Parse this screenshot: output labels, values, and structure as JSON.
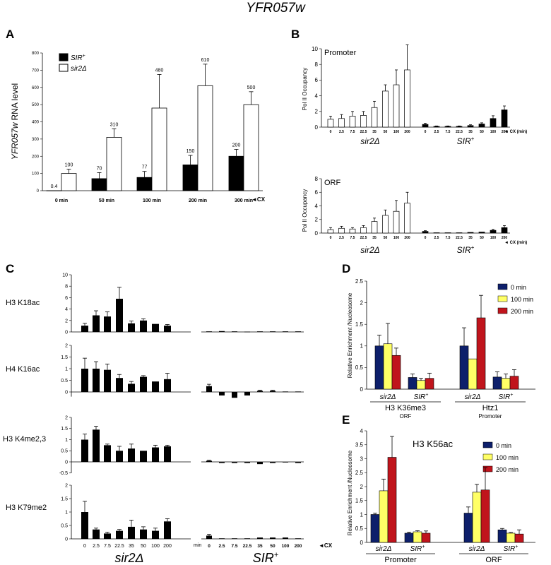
{
  "figure_title": "YFR057w",
  "panels": {
    "A": {
      "letter": "A",
      "ylabel_gene": "YFR057w",
      "ylabel_rest": "RNA level",
      "yticks": [
        "0",
        "100",
        "200",
        "300",
        "400",
        "500",
        "600",
        "700",
        "800"
      ],
      "categories": [
        "0 min",
        "50 min",
        "100 min",
        "200 min",
        "300 min"
      ],
      "cx_marker": "◄CX",
      "legend": [
        {
          "name": "SIR",
          "sup": "+",
          "color": "#000000"
        },
        {
          "name": "sir2Δ",
          "sup": "",
          "color": "#ffffff"
        }
      ],
      "value_labels_sir": [
        "0.4",
        "70",
        "77",
        "150",
        "200"
      ],
      "value_labels_sir2": [
        "100",
        "310",
        "480",
        "610",
        "500"
      ]
    },
    "B": {
      "letter": "B",
      "ylabel": "Pol II Occupancy",
      "subpanels": [
        {
          "label": "Promoter",
          "yticks": [
            "0",
            "2",
            "4",
            "6",
            "8",
            "10"
          ]
        },
        {
          "label": "ORF",
          "yticks": [
            "0",
            "2",
            "4",
            "6",
            "8"
          ]
        }
      ],
      "xticks": [
        "0",
        "2.5",
        "7.5",
        "22.5",
        "35",
        "50",
        "100",
        "200"
      ],
      "cx_marker": "◄ CX (min)",
      "group_sir2": "sir2Δ",
      "group_sir": "SIR",
      "group_sir_sup": "+"
    },
    "C": {
      "letter": "C",
      "rows": [
        {
          "label": "H3 K18ac",
          "yticks": [
            "0",
            "2",
            "4",
            "6",
            "8",
            "10"
          ]
        },
        {
          "label": "H4 K16ac",
          "yticks": [
            "0",
            "0.5",
            "1",
            "1.5",
            "2"
          ]
        },
        {
          "label": "H3 K4me2,3",
          "yticks": [
            "-0.5",
            "0",
            "0.5",
            "1",
            "1.5",
            "2"
          ]
        },
        {
          "label": "H3 K79me2",
          "yticks": [
            "0",
            "0.5",
            "1",
            "1.5",
            "2"
          ]
        }
      ],
      "xticks": [
        "0",
        "2.5",
        "7.5",
        "22.5",
        "35",
        "50",
        "100",
        "200"
      ],
      "min_label": "min",
      "cx_marker": "◄CX",
      "group_sir2": "sir2Δ",
      "group_sir": "SIR",
      "group_sir_sup": "+"
    },
    "D": {
      "letter": "D",
      "ylabel": "Relative Enrichment /Nucleosome",
      "yticks": [
        "0",
        "0.5",
        "1",
        "1.5",
        "2",
        "2.5"
      ],
      "legend": [
        {
          "name": "0 min",
          "color": "#0d1f6b"
        },
        {
          "name": "100 min",
          "color": "#ffff66"
        },
        {
          "name": "200 min",
          "color": "#c0141c"
        }
      ],
      "strain_sir2": "sir2Δ",
      "strain_sir": "SIR",
      "strain_sup": "+",
      "groups": [
        {
          "name": "H3 K36me3",
          "sub": "ORF"
        },
        {
          "name": "Htz1",
          "sub": "Promoter"
        }
      ]
    },
    "E": {
      "letter": "E",
      "ylabel": "Relative Enrichment /Nucleosome",
      "inner_title": "H3 K56ac",
      "yticks": [
        "0",
        "0.5",
        "1",
        "1.5",
        "2",
        "2.5",
        "3",
        "3.5",
        "4"
      ],
      "legend": [
        {
          "name": "0 min",
          "color": "#0d1f6b"
        },
        {
          "name": "100 min",
          "color": "#ffff66"
        },
        {
          "name": "200 min",
          "color": "#c0141c"
        }
      ],
      "strain_sir2": "sir2Δ",
      "strain_sir": "SIR",
      "strain_sup": "+",
      "groups": [
        "Promoter",
        "ORF"
      ]
    }
  },
  "chart_data": [
    {
      "panel": "A",
      "type": "bar",
      "categories": [
        "0 min",
        "50 min",
        "100 min",
        "200 min",
        "300 min"
      ],
      "ylim": [
        0,
        800
      ],
      "series": [
        {
          "name": "SIR+",
          "values": [
            0.4,
            70,
            77,
            150,
            200
          ],
          "errors": [
            0,
            35,
            35,
            55,
            40
          ]
        },
        {
          "name": "sir2Δ",
          "values": [
            100,
            310,
            480,
            610,
            500
          ],
          "errors": [
            25,
            50,
            195,
            125,
            75
          ]
        }
      ]
    },
    {
      "panel": "B-Promoter",
      "type": "bar",
      "ylim": [
        0,
        10
      ],
      "x": [
        "0",
        "2.5",
        "7.5",
        "22.5",
        "35",
        "50",
        "100",
        "200"
      ],
      "series": [
        {
          "name": "sir2Δ",
          "values": [
            1.0,
            1.1,
            1.4,
            1.5,
            2.5,
            4.6,
            5.4,
            7.3
          ],
          "errors": [
            0.4,
            0.5,
            0.6,
            0.5,
            0.8,
            0.8,
            1.9,
            3.2
          ]
        },
        {
          "name": "SIR+",
          "values": [
            0.35,
            0.1,
            0.1,
            0.1,
            0.2,
            0.4,
            1.1,
            2.2
          ],
          "errors": [
            0.15,
            0.05,
            0.05,
            0.05,
            0.1,
            0.15,
            0.35,
            0.5
          ]
        }
      ]
    },
    {
      "panel": "B-ORF",
      "type": "bar",
      "ylim": [
        0,
        8
      ],
      "x": [
        "0",
        "2.5",
        "7.5",
        "22.5",
        "35",
        "50",
        "100",
        "200"
      ],
      "series": [
        {
          "name": "sir2Δ",
          "values": [
            0.5,
            0.7,
            0.6,
            0.8,
            1.7,
            2.6,
            3.2,
            4.4
          ],
          "errors": [
            0.3,
            0.3,
            0.2,
            0.3,
            0.5,
            0.8,
            1.6,
            1.6
          ]
        },
        {
          "name": "SIR+",
          "values": [
            0.25,
            0.05,
            0.05,
            0.05,
            0.1,
            0.15,
            0.4,
            0.8
          ],
          "errors": [
            0.1,
            0.02,
            0.02,
            0.02,
            0.05,
            0.05,
            0.15,
            0.3
          ]
        }
      ]
    },
    {
      "panel": "C-H3K18ac",
      "type": "bar",
      "ylim": [
        0,
        10
      ],
      "x": [
        "0",
        "2.5",
        "7.5",
        "22.5",
        "35",
        "50",
        "100",
        "200"
      ],
      "series": [
        {
          "name": "sir2Δ",
          "values": [
            1.1,
            2.9,
            2.7,
            5.8,
            1.5,
            2.0,
            1.4,
            1.1
          ],
          "errors": [
            0.4,
            0.8,
            0.8,
            2.0,
            0.4,
            0.3,
            0,
            0.2
          ]
        },
        {
          "name": "SIR+",
          "values": [
            0.1,
            0.15,
            0.1,
            0.05,
            0.1,
            0.1,
            0.1,
            0.1
          ],
          "errors": [
            0,
            0,
            0,
            0,
            0,
            0,
            0,
            0
          ]
        }
      ]
    },
    {
      "panel": "C-H4K16ac",
      "type": "bar",
      "ylim": [
        -0.3,
        2
      ],
      "x": [
        "0",
        "2.5",
        "7.5",
        "22.5",
        "35",
        "50",
        "100",
        "200"
      ],
      "series": [
        {
          "name": "sir2Δ",
          "values": [
            1.0,
            1.0,
            0.95,
            0.6,
            0.35,
            0.65,
            0.45,
            0.55
          ],
          "errors": [
            0.45,
            0.3,
            0.25,
            0.15,
            0.1,
            0.05,
            0,
            0.25
          ]
        },
        {
          "name": "SIR+",
          "values": [
            0.25,
            -0.15,
            -0.25,
            -0.15,
            0.05,
            0.05,
            0.02,
            0.02
          ],
          "errors": [
            0.08,
            0,
            0,
            0,
            0.03,
            0.03,
            0,
            0
          ]
        }
      ]
    },
    {
      "panel": "C-H3K4me2,3",
      "type": "bar",
      "ylim": [
        -0.5,
        2
      ],
      "x": [
        "0",
        "2.5",
        "7.5",
        "22.5",
        "35",
        "50",
        "100",
        "200"
      ],
      "series": [
        {
          "name": "sir2Δ",
          "values": [
            1.0,
            1.45,
            0.75,
            0.5,
            0.6,
            0.5,
            0.65,
            0.7
          ],
          "errors": [
            0.25,
            0.15,
            0.05,
            0.2,
            0.2,
            0,
            0.1,
            0.05
          ]
        },
        {
          "name": "SIR+",
          "values": [
            0.05,
            -0.05,
            -0.05,
            -0.05,
            -0.1,
            -0.05,
            -0.02,
            -0.05
          ],
          "errors": [
            0.03,
            0,
            0,
            0,
            0,
            0,
            0,
            0
          ]
        }
      ]
    },
    {
      "panel": "C-H3K79me2",
      "type": "bar",
      "ylim": [
        0,
        2
      ],
      "x": [
        "0",
        "2.5",
        "7.5",
        "22.5",
        "35",
        "50",
        "100",
        "200"
      ],
      "series": [
        {
          "name": "sir2Δ",
          "values": [
            1.0,
            0.35,
            0.2,
            0.3,
            0.45,
            0.35,
            0.3,
            0.65
          ],
          "errors": [
            0.4,
            0.05,
            0.05,
            0.05,
            0.25,
            0.1,
            0.1,
            0.1
          ]
        },
        {
          "name": "SIR+",
          "values": [
            0.12,
            0.02,
            0.02,
            0.02,
            0.05,
            0.05,
            0.05,
            0.02
          ],
          "errors": [
            0.05,
            0,
            0,
            0,
            0,
            0,
            0,
            0
          ]
        }
      ]
    },
    {
      "panel": "D",
      "type": "bar",
      "ylim": [
        0,
        2.5
      ],
      "groups": [
        "H3 K36me3 sir2Δ",
        "H3 K36me3 SIR+",
        "Htz1 sir2Δ",
        "Htz1 SIR+"
      ],
      "series": [
        {
          "name": "0 min",
          "values": [
            1.0,
            0.27,
            1.0,
            0.28
          ],
          "errors": [
            0.25,
            0.08,
            0.42,
            0.12
          ]
        },
        {
          "name": "100 min",
          "values": [
            1.05,
            0.2,
            0.7,
            0.25
          ],
          "errors": [
            0.47,
            0.05,
            0.0,
            0.1
          ]
        },
        {
          "name": "200 min",
          "values": [
            0.78,
            0.25,
            1.65,
            0.3
          ],
          "errors": [
            0.17,
            0.12,
            0.52,
            0.15
          ]
        }
      ]
    },
    {
      "panel": "E",
      "type": "bar",
      "ylim": [
        0,
        4
      ],
      "groups": [
        "Promoter sir2Δ",
        "Promoter SIR+",
        "ORF sir2Δ",
        "ORF SIR+"
      ],
      "series": [
        {
          "name": "0 min",
          "values": [
            1.0,
            0.33,
            1.05,
            0.45
          ],
          "errors": [
            0.05,
            0.04,
            0.22,
            0.05
          ]
        },
        {
          "name": "100 min",
          "values": [
            1.85,
            0.38,
            1.8,
            0.33
          ],
          "errors": [
            0.42,
            0.04,
            0.28,
            0.03
          ]
        },
        {
          "name": "200 min",
          "values": [
            3.05,
            0.33,
            1.88,
            0.3
          ],
          "errors": [
            0.75,
            0.08,
            0.8,
            0.15
          ]
        }
      ]
    }
  ]
}
